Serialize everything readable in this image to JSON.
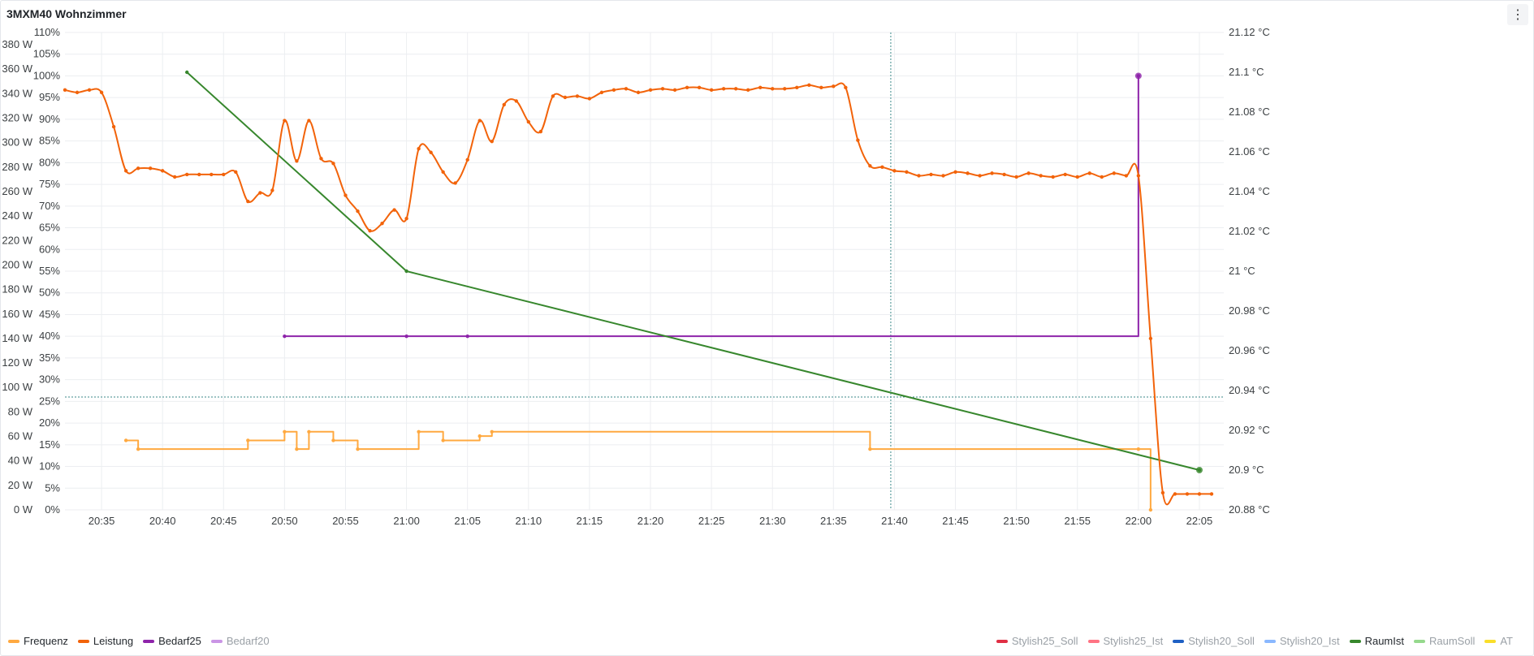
{
  "panel": {
    "title": "3MXM40 Wohnzimmer",
    "menu_icon": "kebab-menu-icon",
    "menu_glyph": "⋮"
  },
  "chart_data": {
    "type": "line",
    "x_ticks": [
      "20:35",
      "20:40",
      "20:45",
      "20:50",
      "20:55",
      "21:00",
      "21:05",
      "21:10",
      "21:15",
      "21:20",
      "21:25",
      "21:30",
      "21:35",
      "21:40",
      "21:45",
      "21:50",
      "21:55",
      "22:00",
      "22:05"
    ],
    "x_range": [
      "20:32",
      "22:07"
    ],
    "y_watt": {
      "ticks": [
        "0 W",
        "20 W",
        "40 W",
        "60 W",
        "80 W",
        "100 W",
        "120 W",
        "140 W",
        "160 W",
        "180 W",
        "200 W",
        "220 W",
        "240 W",
        "260 W",
        "280 W",
        "300 W",
        "320 W",
        "340 W",
        "360 W",
        "380 W"
      ],
      "range": [
        0,
        390
      ]
    },
    "y_percent": {
      "ticks": [
        "0%",
        "5%",
        "10%",
        "15%",
        "20%",
        "25%",
        "30%",
        "35%",
        "40%",
        "45%",
        "50%",
        "55%",
        "60%",
        "65%",
        "70%",
        "75%",
        "80%",
        "85%",
        "90%",
        "95%",
        "100%",
        "105%",
        "110%"
      ],
      "range": [
        0,
        110
      ]
    },
    "y_temp": {
      "ticks": [
        "20.88 °C",
        "20.9 °C",
        "20.92 °C",
        "20.94 °C",
        "20.96 °C",
        "20.98 °C",
        "21 °C",
        "21.02 °C",
        "21.04 °C",
        "21.06 °C",
        "21.08 °C",
        "21.1 °C",
        "21.12 °C"
      ],
      "range": [
        20.88,
        21.12
      ]
    },
    "cursor_x": "21:39.7",
    "threshold_percent": 26,
    "series": [
      {
        "name": "Frequenz",
        "color": "#ffa940",
        "axis": "percent",
        "shape": "step",
        "visible": true,
        "x": [
          "20:37",
          "20:38",
          "20:47",
          "20:50",
          "20:51",
          "20:52",
          "20:54",
          "20:56",
          "21:01",
          "21:03",
          "21:06",
          "21:07",
          "21:38",
          "22:00",
          "22:01"
        ],
        "values": [
          16,
          14,
          16,
          18,
          14,
          18,
          16,
          14,
          18,
          16,
          17,
          18,
          14,
          14,
          0
        ]
      },
      {
        "name": "Leistung",
        "color": "#f2630a",
        "axis": "watt",
        "shape": "smooth",
        "visible": true,
        "x": [
          "20:32",
          "20:33",
          "20:34",
          "20:35",
          "20:36",
          "20:37",
          "20:38",
          "20:39",
          "20:40",
          "20:41",
          "20:42",
          "20:43",
          "20:44",
          "20:45",
          "20:46",
          "20:47",
          "20:48",
          "20:49",
          "20:50",
          "20:51",
          "20:52",
          "20:53",
          "20:54",
          "20:55",
          "20:56",
          "20:57",
          "20:58",
          "20:59",
          "21:00",
          "21:01",
          "21:02",
          "21:03",
          "21:04",
          "21:05",
          "21:06",
          "21:07",
          "21:08",
          "21:09",
          "21:10",
          "21:11",
          "21:12",
          "21:13",
          "21:14",
          "21:15",
          "21:16",
          "21:17",
          "21:18",
          "21:19",
          "21:20",
          "21:21",
          "21:22",
          "21:23",
          "21:24",
          "21:25",
          "21:26",
          "21:27",
          "21:28",
          "21:29",
          "21:30",
          "21:31",
          "21:32",
          "21:33",
          "21:34",
          "21:35",
          "21:36",
          "21:37",
          "21:38",
          "21:39",
          "21:40",
          "21:41",
          "21:42",
          "21:43",
          "21:44",
          "21:45",
          "21:46",
          "21:47",
          "21:48",
          "21:49",
          "21:50",
          "21:51",
          "21:52",
          "21:53",
          "21:54",
          "21:55",
          "21:56",
          "21:57",
          "21:58",
          "21:59",
          "22:00",
          "22:01",
          "22:02",
          "22:03",
          "22:04",
          "22:05",
          "22:06"
        ],
        "values": [
          343,
          341,
          343,
          341,
          313,
          277,
          279,
          279,
          277,
          272,
          274,
          274,
          274,
          274,
          276,
          252,
          259,
          261,
          318,
          285,
          318,
          287,
          283,
          257,
          244,
          228,
          234,
          245,
          238,
          295,
          292,
          276,
          267,
          286,
          318,
          301,
          331,
          334,
          317,
          309,
          338,
          337,
          338,
          336,
          341,
          343,
          344,
          341,
          343,
          344,
          343,
          345,
          345,
          343,
          344,
          344,
          343,
          345,
          344,
          344,
          345,
          347,
          345,
          346,
          345,
          302,
          281,
          280,
          277,
          276,
          273,
          274,
          273,
          276,
          275,
          273,
          275,
          274,
          272,
          275,
          273,
          272,
          274,
          272,
          275,
          272,
          275,
          273,
          273,
          140,
          14,
          13,
          13,
          13,
          13
        ]
      },
      {
        "name": "Bedarf25",
        "color": "#8e24aa",
        "axis": "percent",
        "shape": "step",
        "visible": true,
        "x": [
          "20:50",
          "21:00",
          "21:05",
          "22:00"
        ],
        "values": [
          40,
          40,
          40,
          100
        ]
      },
      {
        "name": "Bedarf20",
        "color": "#ca95e5",
        "axis": "percent",
        "visible": false,
        "x": [],
        "values": []
      },
      {
        "name": "Stylish25_Soll",
        "color": "#e02f44",
        "visible": false,
        "x": [],
        "values": []
      },
      {
        "name": "Stylish25_Ist",
        "color": "#ff7383",
        "visible": false,
        "x": [],
        "values": []
      },
      {
        "name": "Stylish20_Soll",
        "color": "#1f60c4",
        "visible": false,
        "x": [],
        "values": []
      },
      {
        "name": "Stylish20_Ist",
        "color": "#8ab8ff",
        "visible": false,
        "x": [],
        "values": []
      },
      {
        "name": "RaumIst",
        "color": "#37872d",
        "axis": "temp",
        "shape": "line",
        "visible": true,
        "x": [
          "20:42",
          "21:00",
          "22:05"
        ],
        "values": [
          21.1,
          21.0,
          20.9
        ]
      },
      {
        "name": "RaumSoll",
        "color": "#96d98d",
        "visible": false,
        "x": [],
        "values": []
      },
      {
        "name": "AT",
        "color": "#fade2a",
        "visible": false,
        "x": [],
        "values": []
      }
    ]
  }
}
